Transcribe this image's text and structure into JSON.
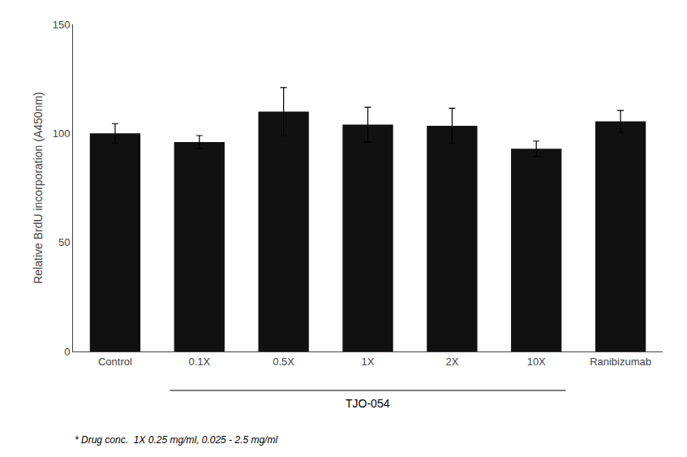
{
  "chart_data": {
    "type": "bar",
    "categories": [
      "Control",
      "0.1X",
      "0.5X",
      "1X",
      "2X",
      "10X",
      "Ranibizumab"
    ],
    "values": [
      100,
      96,
      110,
      104,
      103.5,
      93,
      105.5
    ],
    "errors": [
      4.5,
      3,
      11,
      8,
      8,
      3.5,
      5
    ],
    "color": "#111111",
    "ylabel": "Relative BrdU incorporation (A450nm)",
    "ylim": [
      0,
      150
    ],
    "yticks": [
      0,
      50,
      100,
      150
    ],
    "grid": false,
    "annotations": [
      {
        "text": "TJO-054",
        "span": [
          "0.1X",
          "10X"
        ]
      },
      {
        "text": "* Drug conc.  1X 0.25 mg/ml, 0.025 - 2.5 mg/ml"
      }
    ]
  }
}
